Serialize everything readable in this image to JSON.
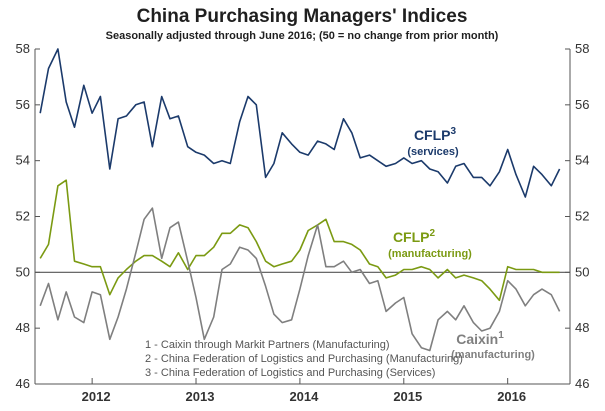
{
  "chart_data": {
    "type": "line",
    "title": "China Purchasing Managers' Indices",
    "subtitle": "Seasonally adjusted through June 2016; (50 = no change from prior month)",
    "ylim": [
      46,
      58
    ],
    "yticks": [
      "46",
      "48",
      "50",
      "52",
      "54",
      "56",
      "58"
    ],
    "xlim": [
      2011.45,
      2016.6
    ],
    "xticks": [
      {
        "label": "2012",
        "at": 2012.0
      },
      {
        "label": "2013",
        "at": 2013.0
      },
      {
        "label": "2014",
        "at": 2014.0
      },
      {
        "label": "2015",
        "at": 2015.0
      },
      {
        "label": "2016",
        "at": 2016.0
      }
    ],
    "reference_line": 50,
    "grid": false,
    "colors": {
      "services": "#1b3a6b",
      "manufacturing": "#7b9a12",
      "caixin": "#7f7f7f",
      "axis": "#555555",
      "baseline": "#555555"
    },
    "series": [
      {
        "name": "CFLP",
        "superscript": "3",
        "sublabel": "(services)",
        "color_key": "services",
        "points": [
          [
            2011.5,
            55.7
          ],
          [
            2011.58,
            57.3
          ],
          [
            2011.67,
            58.0
          ],
          [
            2011.75,
            56.1
          ],
          [
            2011.83,
            55.2
          ],
          [
            2011.92,
            56.7
          ],
          [
            2012.0,
            55.7
          ],
          [
            2012.08,
            56.3
          ],
          [
            2012.17,
            53.7
          ],
          [
            2012.25,
            55.5
          ],
          [
            2012.33,
            55.6
          ],
          [
            2012.42,
            56.0
          ],
          [
            2012.5,
            56.1
          ],
          [
            2012.58,
            54.5
          ],
          [
            2012.67,
            56.3
          ],
          [
            2012.75,
            55.5
          ],
          [
            2012.83,
            55.6
          ],
          [
            2012.92,
            54.5
          ],
          [
            2013.0,
            54.3
          ],
          [
            2013.08,
            54.2
          ],
          [
            2013.17,
            53.9
          ],
          [
            2013.25,
            54.0
          ],
          [
            2013.33,
            53.9
          ],
          [
            2013.42,
            55.4
          ],
          [
            2013.5,
            56.3
          ],
          [
            2013.58,
            56.0
          ],
          [
            2013.67,
            53.4
          ],
          [
            2013.75,
            53.9
          ],
          [
            2013.83,
            55.0
          ],
          [
            2013.92,
            54.6
          ],
          [
            2014.0,
            54.3
          ],
          [
            2014.08,
            54.2
          ],
          [
            2014.17,
            54.7
          ],
          [
            2014.25,
            54.6
          ],
          [
            2014.33,
            54.4
          ],
          [
            2014.42,
            55.5
          ],
          [
            2014.5,
            55.0
          ],
          [
            2014.58,
            54.1
          ],
          [
            2014.67,
            54.2
          ],
          [
            2014.75,
            54.0
          ],
          [
            2014.83,
            53.8
          ],
          [
            2014.92,
            53.9
          ],
          [
            2015.0,
            54.1
          ],
          [
            2015.08,
            53.9
          ],
          [
            2015.17,
            54.0
          ],
          [
            2015.25,
            53.7
          ],
          [
            2015.33,
            53.6
          ],
          [
            2015.42,
            53.2
          ],
          [
            2015.5,
            53.8
          ],
          [
            2015.58,
            53.9
          ],
          [
            2015.67,
            53.4
          ],
          [
            2015.75,
            53.4
          ],
          [
            2015.83,
            53.1
          ],
          [
            2015.92,
            53.6
          ],
          [
            2016.0,
            54.4
          ],
          [
            2016.08,
            53.5
          ],
          [
            2016.17,
            52.7
          ],
          [
            2016.25,
            53.8
          ],
          [
            2016.33,
            53.5
          ],
          [
            2016.42,
            53.1
          ],
          [
            2016.5,
            53.7
          ]
        ]
      },
      {
        "name": "CFLP",
        "superscript": "2",
        "sublabel": "(manufacturing)",
        "color_key": "manufacturing",
        "points": [
          [
            2011.5,
            50.5
          ],
          [
            2011.58,
            51.0
          ],
          [
            2011.67,
            53.1
          ],
          [
            2011.75,
            53.3
          ],
          [
            2011.83,
            50.4
          ],
          [
            2011.92,
            50.3
          ],
          [
            2012.0,
            50.2
          ],
          [
            2012.08,
            50.2
          ],
          [
            2012.17,
            49.2
          ],
          [
            2012.25,
            49.8
          ],
          [
            2012.33,
            50.1
          ],
          [
            2012.42,
            50.4
          ],
          [
            2012.5,
            50.6
          ],
          [
            2012.58,
            50.6
          ],
          [
            2012.67,
            50.4
          ],
          [
            2012.75,
            50.2
          ],
          [
            2012.83,
            50.7
          ],
          [
            2012.92,
            50.1
          ],
          [
            2013.0,
            50.6
          ],
          [
            2013.08,
            50.6
          ],
          [
            2013.17,
            50.9
          ],
          [
            2013.25,
            51.4
          ],
          [
            2013.33,
            51.4
          ],
          [
            2013.42,
            51.7
          ],
          [
            2013.5,
            51.6
          ],
          [
            2013.58,
            51.1
          ],
          [
            2013.67,
            50.4
          ],
          [
            2013.75,
            50.2
          ],
          [
            2013.83,
            50.3
          ],
          [
            2013.92,
            50.4
          ],
          [
            2014.0,
            50.8
          ],
          [
            2014.08,
            51.5
          ],
          [
            2014.17,
            51.7
          ],
          [
            2014.25,
            51.9
          ],
          [
            2014.33,
            51.1
          ],
          [
            2014.42,
            51.1
          ],
          [
            2014.5,
            51.0
          ],
          [
            2014.58,
            50.8
          ],
          [
            2014.67,
            50.3
          ],
          [
            2014.75,
            50.2
          ],
          [
            2014.83,
            49.8
          ],
          [
            2014.92,
            49.9
          ],
          [
            2015.0,
            50.1
          ],
          [
            2015.08,
            50.1
          ],
          [
            2015.17,
            50.2
          ],
          [
            2015.25,
            50.1
          ],
          [
            2015.33,
            49.8
          ],
          [
            2015.42,
            50.1
          ],
          [
            2015.5,
            49.8
          ],
          [
            2015.58,
            49.9
          ],
          [
            2015.67,
            49.8
          ],
          [
            2015.75,
            49.7
          ],
          [
            2015.83,
            49.4
          ],
          [
            2015.92,
            49.0
          ],
          [
            2016.0,
            50.2
          ],
          [
            2016.08,
            50.1
          ],
          [
            2016.17,
            50.1
          ],
          [
            2016.25,
            50.1
          ],
          [
            2016.33,
            50.0
          ],
          [
            2016.42,
            50.0
          ],
          [
            2016.5,
            50.0
          ]
        ]
      },
      {
        "name": "Caixin",
        "superscript": "1",
        "sublabel": "(manufacturing)",
        "color_key": "caixin",
        "points": [
          [
            2011.5,
            48.8
          ],
          [
            2011.58,
            49.6
          ],
          [
            2011.67,
            48.3
          ],
          [
            2011.75,
            49.3
          ],
          [
            2011.83,
            48.4
          ],
          [
            2011.92,
            48.2
          ],
          [
            2012.0,
            49.3
          ],
          [
            2012.08,
            49.2
          ],
          [
            2012.17,
            47.6
          ],
          [
            2012.25,
            48.4
          ],
          [
            2012.33,
            49.4
          ],
          [
            2012.42,
            50.7
          ],
          [
            2012.5,
            51.9
          ],
          [
            2012.58,
            52.3
          ],
          [
            2012.67,
            50.5
          ],
          [
            2012.75,
            51.6
          ],
          [
            2012.83,
            51.8
          ],
          [
            2012.92,
            50.4
          ],
          [
            2013.0,
            49.1
          ],
          [
            2013.08,
            47.6
          ],
          [
            2013.17,
            48.4
          ],
          [
            2013.25,
            50.1
          ],
          [
            2013.33,
            50.3
          ],
          [
            2013.42,
            50.9
          ],
          [
            2013.5,
            50.8
          ],
          [
            2013.58,
            50.5
          ],
          [
            2013.67,
            49.5
          ],
          [
            2013.75,
            48.5
          ],
          [
            2013.83,
            48.2
          ],
          [
            2013.92,
            48.3
          ],
          [
            2014.0,
            49.4
          ],
          [
            2014.08,
            50.6
          ],
          [
            2014.17,
            51.7
          ],
          [
            2014.25,
            50.2
          ],
          [
            2014.33,
            50.2
          ],
          [
            2014.42,
            50.4
          ],
          [
            2014.5,
            50.0
          ],
          [
            2014.58,
            50.1
          ],
          [
            2014.67,
            49.6
          ],
          [
            2014.75,
            49.7
          ],
          [
            2014.83,
            48.6
          ],
          [
            2014.92,
            48.9
          ],
          [
            2015.0,
            49.1
          ],
          [
            2015.08,
            47.8
          ],
          [
            2015.17,
            47.3
          ],
          [
            2015.25,
            47.2
          ],
          [
            2015.33,
            48.3
          ],
          [
            2015.42,
            48.6
          ],
          [
            2015.5,
            48.3
          ],
          [
            2015.58,
            48.8
          ],
          [
            2015.67,
            48.2
          ],
          [
            2015.75,
            47.9
          ],
          [
            2015.83,
            48.0
          ],
          [
            2015.92,
            48.6
          ],
          [
            2016.0,
            49.7
          ],
          [
            2016.08,
            49.4
          ],
          [
            2016.17,
            48.8
          ],
          [
            2016.25,
            49.2
          ],
          [
            2016.33,
            49.4
          ],
          [
            2016.42,
            49.2
          ],
          [
            2016.5,
            48.6
          ]
        ]
      }
    ],
    "footnotes": [
      "1 - Caixin through Markit Partners (Manufacturing)",
      "2 - China Federation of Logistics and Purchasing (Manufacturing)",
      "3 - China Federation of Logistics and Purchasing (Services)"
    ]
  }
}
